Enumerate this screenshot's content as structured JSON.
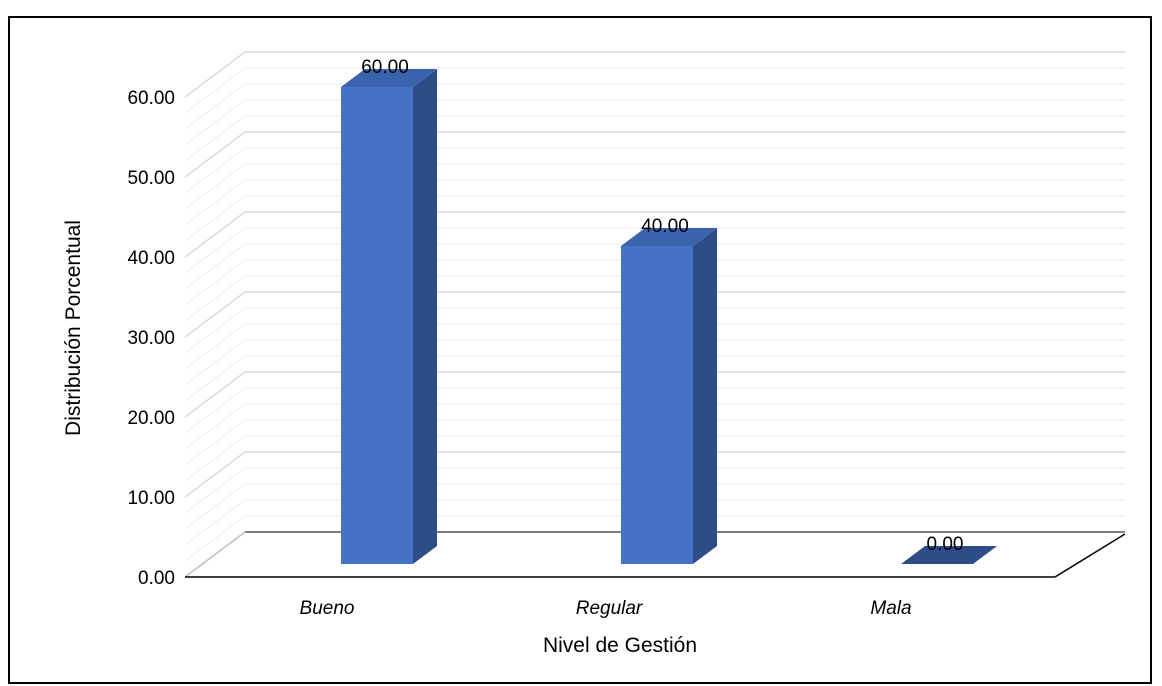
{
  "chart_data": {
    "type": "bar",
    "style": "3d-column",
    "categories": [
      "Bueno",
      "Regular",
      "Mala"
    ],
    "values": [
      60.0,
      40.0,
      0.0
    ],
    "data_labels": [
      "60.00",
      "40.00",
      "0.00"
    ],
    "xlabel": "Nivel de Gestión",
    "ylabel": "Distribución Porcentual",
    "ylim": [
      0,
      60
    ],
    "yticks": [
      0,
      10,
      20,
      30,
      40,
      50,
      60
    ],
    "ytick_labels": [
      "0.00",
      "10.00",
      "20.00",
      "30.00",
      "40.00",
      "50.00",
      "60.00"
    ],
    "grid": true,
    "legend": "none",
    "colors": {
      "bar_front": "#4472C4",
      "bar_side": "#2E4D86",
      "bar_top": "#3A63AE",
      "grid": "#D9D9D9",
      "floor_edge": "#000000",
      "back_baseline": "#808080"
    }
  }
}
